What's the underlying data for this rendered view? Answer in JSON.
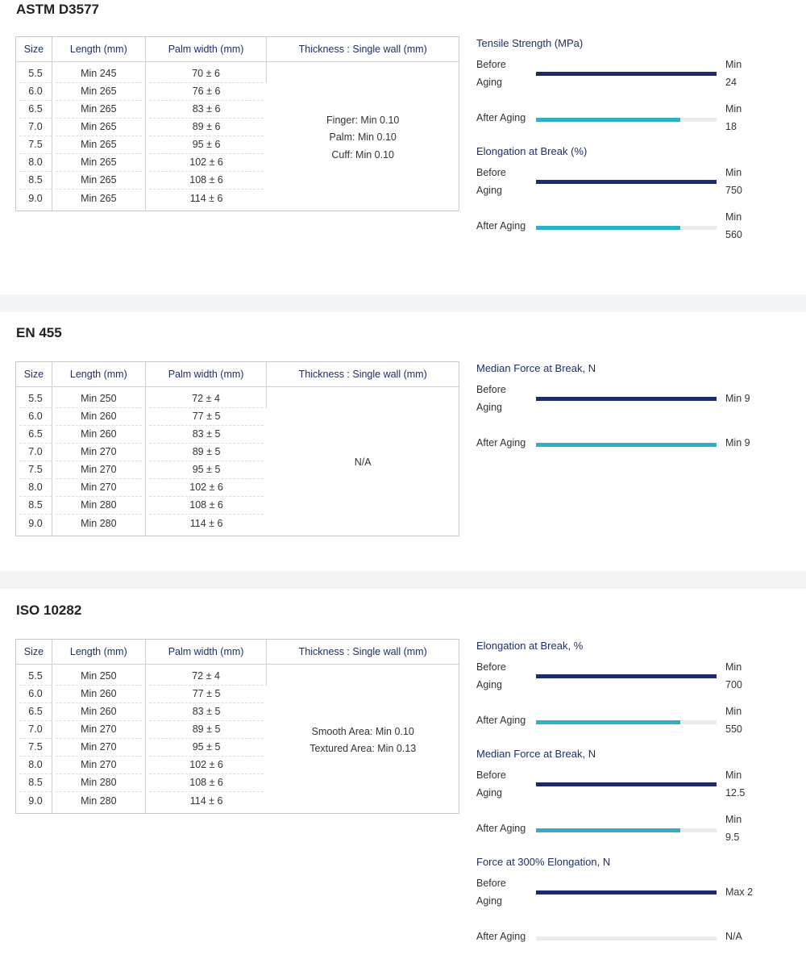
{
  "colors": {
    "before_bar": "#1c2a6b",
    "after_bar": "#2fb0c6",
    "track": "#e8ecef",
    "heading": "#1c2f6b"
  },
  "table_headers": {
    "size": "Size",
    "length": "Length (mm)",
    "palm": "Palm width (mm)",
    "thickness": "Thickness : Single wall (mm)"
  },
  "sections": [
    {
      "title": "ASTM D3577",
      "rows": [
        [
          "5.5",
          "Min 245",
          "70 ± 6"
        ],
        [
          "6.0",
          "Min 265",
          "76 ± 6"
        ],
        [
          "6.5",
          "Min 265",
          "83 ± 6"
        ],
        [
          "7.0",
          "Min 265",
          "89 ± 6"
        ],
        [
          "7.5",
          "Min 265",
          "95 ± 6"
        ],
        [
          "8.0",
          "Min 265",
          "102 ± 6"
        ],
        [
          "8.5",
          "Min 265",
          "108 ± 6"
        ],
        [
          "9.0",
          "Min 265",
          "114 ± 6"
        ]
      ],
      "thickness": [
        "Finger: Min 0.10",
        "Palm: Min 0.10",
        "Cuff: Min 0.10"
      ],
      "metrics": [
        {
          "title": "Tensile Strength (MPa)",
          "rows": [
            {
              "label": "Before Aging",
              "value": "Min 24",
              "fill": 1.0,
              "kind": "before"
            },
            {
              "label": "After Aging",
              "value": "Min 18",
              "fill": 0.8,
              "kind": "after"
            }
          ]
        },
        {
          "title": "Elongation at Break (%)",
          "rows": [
            {
              "label": "Before Aging",
              "value": "Min 750",
              "fill": 1.0,
              "kind": "before"
            },
            {
              "label": "After Aging",
              "value": "Min 560",
              "fill": 0.8,
              "kind": "after"
            }
          ]
        }
      ]
    },
    {
      "title": "EN 455",
      "rows": [
        [
          "5.5",
          "Min 250",
          "72 ± 4"
        ],
        [
          "6.0",
          "Min 260",
          "77 ± 5"
        ],
        [
          "6.5",
          "Min 260",
          "83 ± 5"
        ],
        [
          "7.0",
          "Min 270",
          "89 ± 5"
        ],
        [
          "7.5",
          "Min 270",
          "95 ± 5"
        ],
        [
          "8.0",
          "Min 270",
          "102 ± 6"
        ],
        [
          "8.5",
          "Min 280",
          "108 ± 6"
        ],
        [
          "9.0",
          "Min 280",
          "114 ± 6"
        ]
      ],
      "thickness": [
        "N/A"
      ],
      "metrics": [
        {
          "title": "Median Force at Break, N",
          "rows": [
            {
              "label": "Before Aging",
              "value": "Min 9",
              "fill": 1.0,
              "kind": "before"
            },
            {
              "label": "After Aging",
              "value": "Min 9",
              "fill": 1.0,
              "kind": "after"
            }
          ]
        }
      ]
    },
    {
      "title": "ISO 10282",
      "rows": [
        [
          "5.5",
          "Min 250",
          "72 ± 4"
        ],
        [
          "6.0",
          "Min 260",
          "77 ± 5"
        ],
        [
          "6.5",
          "Min 260",
          "83 ± 5"
        ],
        [
          "7.0",
          "Min 270",
          "89 ± 5"
        ],
        [
          "7.5",
          "Min 270",
          "95 ± 5"
        ],
        [
          "8.0",
          "Min 270",
          "102 ± 6"
        ],
        [
          "8.5",
          "Min 280",
          "108 ± 6"
        ],
        [
          "9.0",
          "Min 280",
          "114 ± 6"
        ]
      ],
      "thickness": [
        "Smooth Area: Min 0.10",
        "Textured Area: Min 0.13"
      ],
      "metrics": [
        {
          "title": "Elongation at Break, %",
          "rows": [
            {
              "label": "Before Aging",
              "value": "Min 700",
              "fill": 1.0,
              "kind": "before"
            },
            {
              "label": "After Aging",
              "value": "Min 550",
              "fill": 0.8,
              "kind": "after"
            }
          ]
        },
        {
          "title": "Median Force at Break, N",
          "rows": [
            {
              "label": "Before Aging",
              "value": "Min 12.5",
              "fill": 1.0,
              "kind": "before"
            },
            {
              "label": "After Aging",
              "value": "Min 9.5",
              "fill": 0.8,
              "kind": "after"
            }
          ]
        },
        {
          "title": "Force at 300% Elongation, N",
          "rows": [
            {
              "label": "Before Aging",
              "value": "Max 2",
              "fill": 1.0,
              "kind": "before"
            },
            {
              "label": "After Aging",
              "value": "N/A",
              "fill": 0.0,
              "kind": "after"
            }
          ]
        }
      ]
    }
  ]
}
